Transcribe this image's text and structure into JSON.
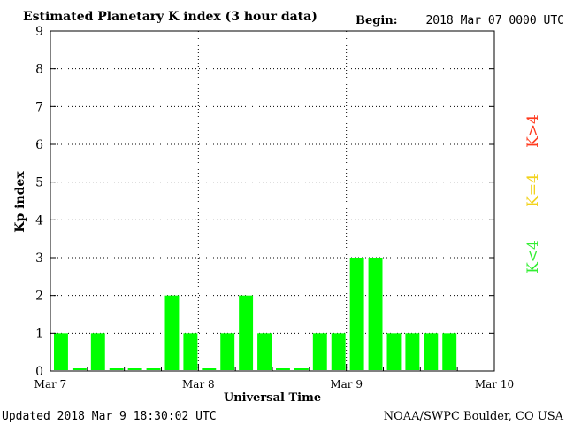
{
  "chart_data": {
    "type": "bar",
    "title": "Estimated Planetary K index (3 hour data)",
    "begin_label": "Begin:",
    "begin_value": "2018 Mar 07 0000 UTC",
    "ylabel": "Kp index",
    "xlabel": "Universal Time",
    "ylim": [
      0,
      9
    ],
    "y_ticks": [
      "0",
      "1",
      "2",
      "3",
      "4",
      "5",
      "6",
      "7",
      "8",
      "9"
    ],
    "x_ticks": [
      "Mar 7",
      "Mar 8",
      "Mar 9",
      "Mar 10"
    ],
    "bar_slots": 24,
    "values": [
      1,
      0,
      1,
      0,
      0,
      0,
      2,
      1,
      0,
      1,
      2,
      1,
      0,
      0,
      1,
      1,
      3,
      3,
      1,
      1,
      1,
      1
    ],
    "bar_color": "#00ff00",
    "grid": "dotted",
    "legend": [
      {
        "label": "K<4",
        "color": "#33ee33"
      },
      {
        "label": "K=4",
        "color": "#f2d21b"
      },
      {
        "label": "K>4",
        "color": "#ff3b1f"
      }
    ]
  },
  "footer": {
    "updated": "Updated 2018 Mar  9 18:30:02 UTC",
    "source": "NOAA/SWPC Boulder, CO USA"
  }
}
